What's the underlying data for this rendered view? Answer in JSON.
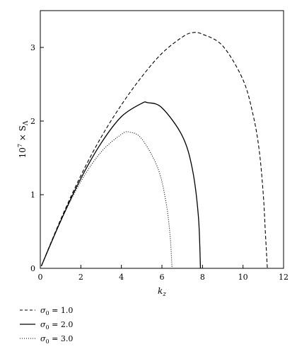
{
  "chart_data": {
    "type": "line",
    "xlabel": "k",
    "xlabel_sub": "z",
    "ylabel_prefix": "10",
    "ylabel_exp": "7",
    "ylabel_mid": " × S",
    "ylabel_sub": "Λ",
    "xlim": [
      0,
      12
    ],
    "ylim": [
      0,
      3.5
    ],
    "xticks": [
      0,
      2,
      4,
      6,
      8,
      10,
      12
    ],
    "yticks": [
      0,
      1,
      2,
      3
    ],
    "grid": false,
    "legend_position": "bottom-left",
    "series": [
      {
        "name_symbol": "σ",
        "name_sub": "0",
        "name_value": " = 1.0",
        "style": "dashed",
        "points": [
          [
            0.05,
            0.03
          ],
          [
            1,
            0.66
          ],
          [
            2,
            1.26
          ],
          [
            3,
            1.78
          ],
          [
            4,
            2.22
          ],
          [
            5,
            2.6
          ],
          [
            6,
            2.92
          ],
          [
            7,
            3.14
          ],
          [
            7.5,
            3.2
          ],
          [
            8,
            3.18
          ],
          [
            9,
            3.02
          ],
          [
            10,
            2.56
          ],
          [
            10.5,
            2.08
          ],
          [
            10.8,
            1.6
          ],
          [
            11,
            1.0
          ],
          [
            11.1,
            0.5
          ],
          [
            11.2,
            0.0
          ]
        ]
      },
      {
        "name_symbol": "σ",
        "name_sub": "0",
        "name_value": " = 2.0",
        "style": "solid",
        "points": [
          [
            0.05,
            0.03
          ],
          [
            1,
            0.64
          ],
          [
            2,
            1.22
          ],
          [
            3,
            1.7
          ],
          [
            4,
            2.06
          ],
          [
            5,
            2.24
          ],
          [
            5.3,
            2.25
          ],
          [
            6,
            2.18
          ],
          [
            7,
            1.8
          ],
          [
            7.5,
            1.35
          ],
          [
            7.8,
            0.7
          ],
          [
            7.9,
            0.0
          ]
        ]
      },
      {
        "name_symbol": "σ",
        "name_sub": "0",
        "name_value": " = 3.0",
        "style": "dotted",
        "points": [
          [
            0.05,
            0.03
          ],
          [
            1,
            0.64
          ],
          [
            2,
            1.18
          ],
          [
            3,
            1.58
          ],
          [
            4,
            1.82
          ],
          [
            4.4,
            1.85
          ],
          [
            5,
            1.76
          ],
          [
            5.8,
            1.36
          ],
          [
            6.2,
            0.9
          ],
          [
            6.4,
            0.45
          ],
          [
            6.5,
            0.0
          ]
        ]
      }
    ]
  }
}
